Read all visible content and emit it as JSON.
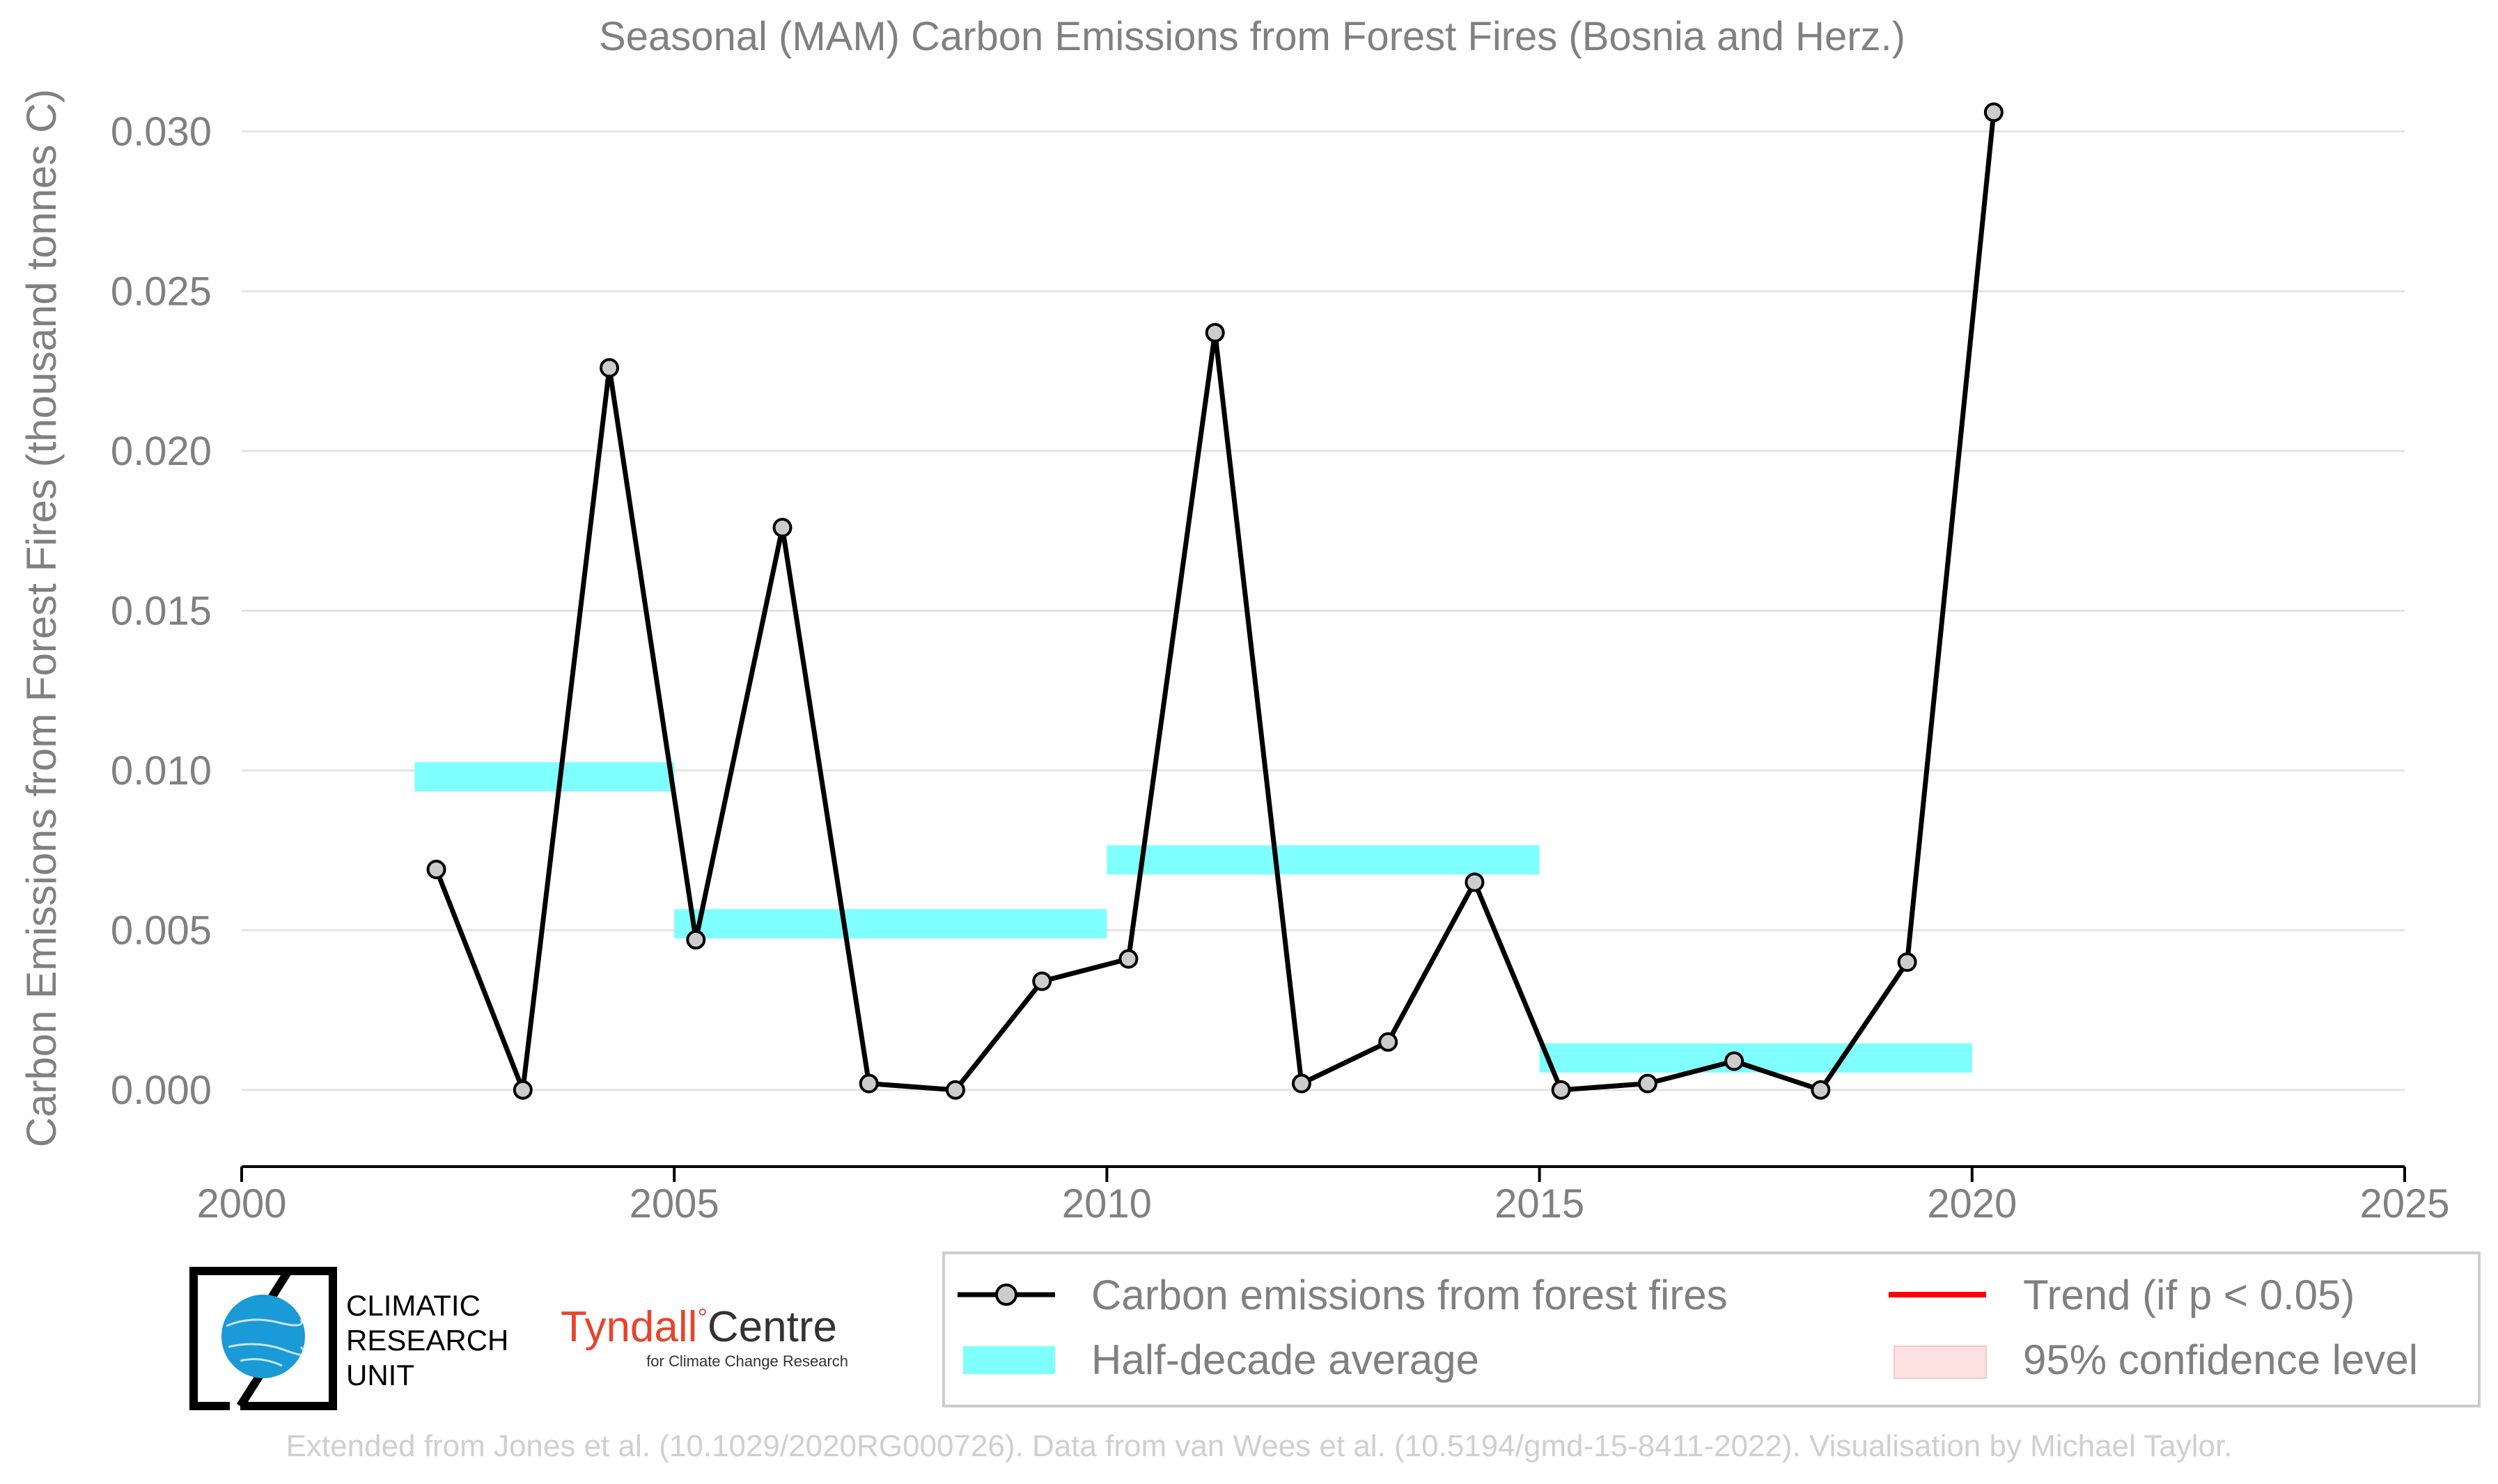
{
  "chart_data": {
    "type": "line",
    "title": "Seasonal (MAM) Carbon Emissions from Forest Fires (Bosnia and Herz.)",
    "xlabel": "",
    "ylabel": "Carbon Emissions from Forest Fires (thousand tonnes C)",
    "xlim": [
      2000,
      2025
    ],
    "ylim": [
      -0.0024,
      0.0315
    ],
    "x_ticks": [
      "2000",
      "2005",
      "2010",
      "2015",
      "2020",
      "2025"
    ],
    "y_ticks": [
      "0.000",
      "0.005",
      "0.010",
      "0.015",
      "0.020",
      "0.025",
      "0.030"
    ],
    "grid": "horizontal",
    "series": [
      {
        "name": "Carbon emissions from forest fires",
        "color": "#000000",
        "marker_color": "#cccccc",
        "x": [
          2002,
          2003,
          2004,
          2005,
          2006,
          2007,
          2008,
          2009,
          2010,
          2011,
          2012,
          2013,
          2014,
          2015,
          2016,
          2017,
          2018,
          2019,
          2020
        ],
        "y": [
          0.0069,
          0.0,
          0.0226,
          0.0047,
          0.0176,
          0.0002,
          0.0,
          0.0034,
          0.0041,
          0.0237,
          0.0002,
          0.0015,
          0.0065,
          0.0,
          0.0002,
          0.0009,
          0.0,
          0.004,
          0.0306
        ]
      }
    ],
    "half_decade_average": {
      "name": "Half-decade average",
      "color": "#7fffff",
      "segments": [
        {
          "x_start": 2002,
          "x_end": 2005,
          "y": 0.0098
        },
        {
          "x_start": 2005,
          "x_end": 2010,
          "y": 0.0052
        },
        {
          "x_start": 2010,
          "x_end": 2015,
          "y": 0.0072
        },
        {
          "x_start": 2015,
          "x_end": 2020,
          "y": 0.001
        }
      ]
    },
    "legend": {
      "placement": "bottom-right",
      "entries": [
        {
          "label": "Carbon emissions from forest fires",
          "type": "line-marker",
          "color": "#000000"
        },
        {
          "label": "Trend (if p < 0.05)",
          "type": "line",
          "color": "#ff0000"
        },
        {
          "label": "Half-decade average",
          "type": "band",
          "color": "#7fffff"
        },
        {
          "label": "95% confidence level",
          "type": "band",
          "color": "#fde0e0"
        }
      ]
    }
  },
  "logos": {
    "cru": [
      "CLIMATIC",
      "RESEARCH",
      "UNIT"
    ],
    "tyndall_name": "Tyndall",
    "tyndall_degree": "°",
    "tyndall_centre": "Centre",
    "tyndall_sub": "for Climate Change Research"
  },
  "footer": "Extended from Jones et al. (10.1029/2020RG000726). Data from van Wees et al. (10.5194/gmd-15-8411-2022). Visualisation by Michael Taylor."
}
